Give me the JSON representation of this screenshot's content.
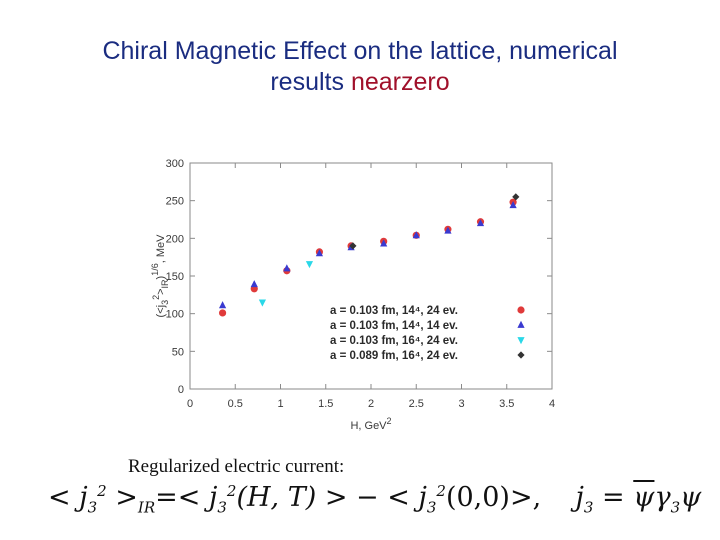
{
  "slide": {
    "title_line1": "Chiral Magnetic Effect on the lattice, numerical",
    "title_line2_prefix": "results ",
    "title_line2_accent": "nearzero",
    "caption": "Regularized electric current:"
  },
  "colors": {
    "title": "#1a2c80",
    "accent": "#a0102a",
    "series": [
      "#e03a3a",
      "#3a3ad0",
      "#2ad8e8",
      "#333333"
    ]
  },
  "chart_data": {
    "type": "scatter",
    "title": "",
    "xlabel": "H, GeV",
    "xlabel_sup": "2",
    "ylabel": "(<j",
    "ylabel_sub": "3",
    "ylabel_sup": "2",
    "ylabel_mid": ">",
    "ylabel_sub2": "IR",
    "ylabel_close": ")",
    "ylabel_sup2": "1/6",
    "ylabel_unit": ", MeV",
    "xlim": [
      0,
      4
    ],
    "ylim": [
      0,
      300
    ],
    "xticks": [
      "0",
      "0.5",
      "1",
      "1.5",
      "2",
      "2.5",
      "3",
      "3.5",
      "4"
    ],
    "xtick_values": [
      0,
      0.5,
      1,
      1.5,
      2,
      2.5,
      3,
      3.5,
      4
    ],
    "yticks": [
      "0",
      "50",
      "100",
      "150",
      "200",
      "250",
      "300"
    ],
    "ytick_values": [
      0,
      50,
      100,
      150,
      200,
      250,
      300
    ],
    "grid": false,
    "legend_position": "bottom-right",
    "series": [
      {
        "name": "a = 0.103 fm, 14⁴, 24 ev.",
        "marker": "circle",
        "color": "#e03a3a",
        "x": [
          0.36,
          0.71,
          1.07,
          1.43,
          1.78,
          2.14,
          2.5,
          2.85,
          3.21,
          3.57
        ],
        "y": [
          101,
          133,
          157,
          182,
          190,
          196,
          204,
          212,
          222,
          248
        ]
      },
      {
        "name": "a = 0.103 fm, 14⁴, 14 ev.",
        "marker": "triangle-up",
        "color": "#3a3ad0",
        "x": [
          0.36,
          0.71,
          1.07,
          1.43,
          1.78,
          2.14,
          2.5,
          2.85,
          3.21,
          3.57
        ],
        "y": [
          111,
          139,
          160,
          180,
          188,
          193,
          204,
          210,
          220,
          244
        ]
      },
      {
        "name": "a = 0.103 fm, 16⁴, 24 ev.",
        "marker": "triangle-down",
        "color": "#2ad8e8",
        "x": [
          0.8,
          1.32
        ],
        "y": [
          115,
          166
        ]
      },
      {
        "name": "a = 0.089 fm, 16⁴, 24 ev.",
        "marker": "diamond",
        "color": "#333333",
        "x": [
          1.8,
          3.6
        ],
        "y": [
          190,
          255
        ]
      }
    ]
  },
  "formula": {
    "lt1": "<",
    "j": "j",
    "sub3": "3",
    "sup2": "2",
    "gt_ir": ">",
    "ir": "IR",
    "eq_lt": "=<",
    "args1": "(H, T)",
    "gt_minus_lt": "> − <",
    "args2": "(0,0)",
    "gt_comma": ">,",
    "eq": "=",
    "psi_bar": "ψ",
    "gamma": "γ",
    "psi": "ψ"
  }
}
